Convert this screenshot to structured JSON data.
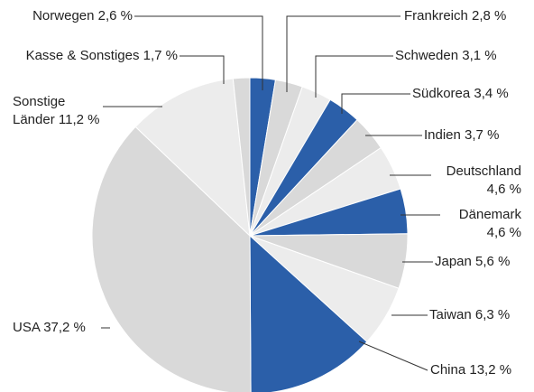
{
  "chart_data": {
    "type": "pie",
    "categories": [
      "Norwegen",
      "Frankreich",
      "Schweden",
      "Südkorea",
      "Indien",
      "Deutschland",
      "Dänemark",
      "Japan",
      "Taiwan",
      "China",
      "USA",
      "Sonstige Länder",
      "Kasse & Sonstiges"
    ],
    "values": [
      2.6,
      2.8,
      3.1,
      3.4,
      3.7,
      4.6,
      4.6,
      5.6,
      6.3,
      13.2,
      37.2,
      11.2,
      1.7
    ],
    "value_labels": [
      "2,6 %",
      "2,8 %",
      "3,1 %",
      "3,4 %",
      "3,7 %",
      "4,6 %",
      "4,6 %",
      "5,6 %",
      "6,3 %",
      "13,2 %",
      "37,2 %",
      "11,2 %",
      "1,7 %"
    ],
    "colors": [
      "#2b5fa9",
      "#d9d9d9",
      "#ececec",
      "#2b5fa9",
      "#d9d9d9",
      "#ececec",
      "#2b5fa9",
      "#d9d9d9",
      "#ececec",
      "#2b5fa9",
      "#d9d9d9",
      "#ececec",
      "#d9d9d9"
    ]
  }
}
